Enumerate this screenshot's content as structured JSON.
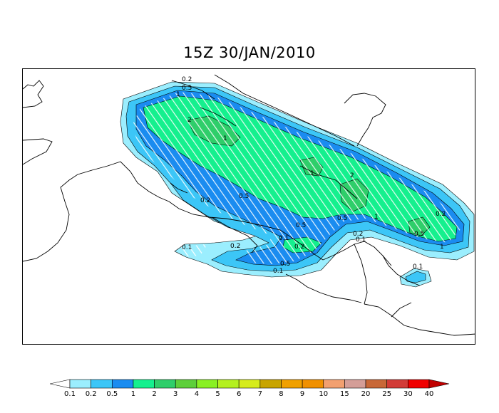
{
  "title": "15Z 30/JAN/2010",
  "colorbar": {
    "levels": [
      "0.1",
      "0.2",
      "0.5",
      "1",
      "2",
      "3",
      "4",
      "5",
      "6",
      "7",
      "8",
      "9",
      "10",
      "15",
      "20",
      "25",
      "30",
      "40"
    ],
    "colors": [
      "#9beefe",
      "#3cc6f7",
      "#1a8cf0",
      "#15f08e",
      "#2fce6a",
      "#5dcf3a",
      "#89f024",
      "#b4f020",
      "#d6ec1c",
      "#c8a400",
      "#f0a000",
      "#f09000",
      "#f2a070",
      "#d49e98",
      "#c86838",
      "#d23c38",
      "#f00000",
      "#c00000"
    ]
  },
  "contour_labels": [
    "0.1",
    "0.2",
    "0.5",
    "1",
    "2"
  ],
  "map_labels": [
    {
      "text": "0.2"
    },
    {
      "text": "0.5"
    },
    {
      "text": "1"
    },
    {
      "text": "2"
    },
    {
      "text": "1"
    },
    {
      "text": "0.2"
    },
    {
      "text": "0.5"
    },
    {
      "text": "1"
    },
    {
      "text": "2"
    },
    {
      "text": "0.5"
    },
    {
      "text": "1"
    },
    {
      "text": "0.5"
    },
    {
      "text": "0.1"
    },
    {
      "text": "0.2"
    },
    {
      "text": "0.1"
    },
    {
      "text": "0.2"
    },
    {
      "text": "0.5"
    },
    {
      "text": "0.1"
    },
    {
      "text": "0.1"
    },
    {
      "text": "0.2"
    },
    {
      "text": "0.5"
    },
    {
      "text": "1"
    },
    {
      "text": "0.2"
    },
    {
      "text": "0.1"
    }
  ]
}
